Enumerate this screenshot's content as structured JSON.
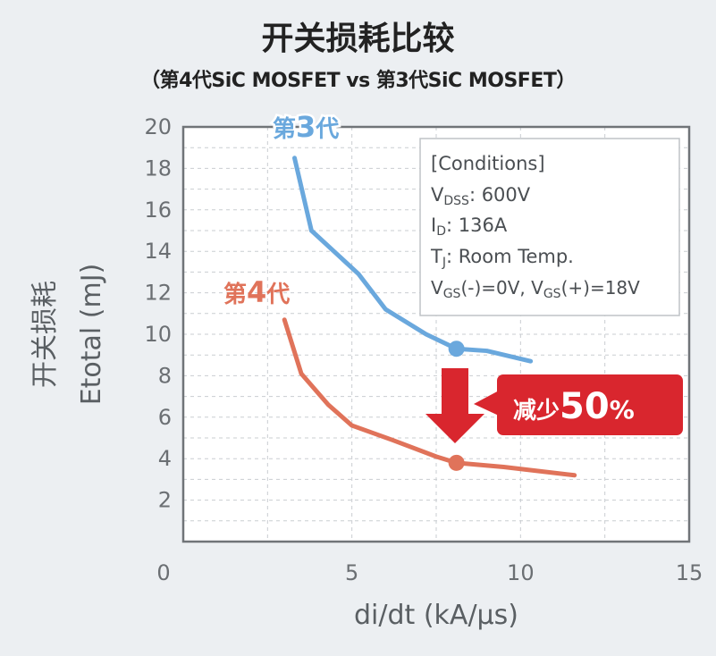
{
  "title": "开关损耗比较",
  "subtitle": "（第4代SiC MOSFET vs 第3代SiC MOSFET）",
  "colors": {
    "gen3": "#6aa8dd",
    "gen4": "#e0735a",
    "arrow": "#d9262e",
    "badge": "#d9262e",
    "axis": "#707478",
    "grid": "#c9cdd1"
  },
  "conditions": {
    "header": "[Conditions]",
    "vdss": {
      "sym": "V",
      "sub": "DSS",
      "text": ": 600V"
    },
    "id": {
      "sym": "I",
      "sub": "D",
      "text": ": 136A"
    },
    "tj": {
      "sym": "T",
      "sub": "J",
      "text": ": Room Temp."
    },
    "vgs": {
      "sym1": "V",
      "sub1": "GS",
      "mid": "(-)=0V, ",
      "sym2": "V",
      "sub2": "GS",
      "end": "(+)=18V"
    }
  },
  "badge": {
    "prefix": "减少",
    "value": "50",
    "unit": "%"
  },
  "chart_data": {
    "type": "line",
    "title": "开关损耗比较",
    "subtitle": "（第4代SiC MOSFET vs 第3代SiC MOSFET）",
    "xlabel": "di/dt (kA/μs)",
    "ylabel": [
      "开关损耗",
      "Etotal (mJ)"
    ],
    "xlim": [
      0,
      15
    ],
    "ylim": [
      0,
      20
    ],
    "xticks": [
      0,
      5,
      10,
      15
    ],
    "yticks": [
      2,
      4,
      6,
      8,
      10,
      12,
      14,
      16,
      18,
      20
    ],
    "grid": true,
    "series": [
      {
        "name": "第3代",
        "label_prefix": "第",
        "label_num": "3",
        "label_suffix": "代",
        "color": "#6aa8dd",
        "x": [
          3.3,
          3.8,
          4.6,
          5.2,
          6.0,
          7.2,
          8.1,
          9.0,
          10.3
        ],
        "y": [
          18.5,
          15.0,
          13.8,
          12.9,
          11.2,
          10.0,
          9.3,
          9.2,
          8.7
        ],
        "marker": {
          "x": 8.1,
          "y": 9.3
        }
      },
      {
        "name": "第4代",
        "label_prefix": "第",
        "label_num": "4",
        "label_suffix": "代",
        "color": "#e0735a",
        "x": [
          3.0,
          3.5,
          4.3,
          5.0,
          6.2,
          7.5,
          8.1,
          9.5,
          11.6
        ],
        "y": [
          10.7,
          8.1,
          6.6,
          5.6,
          4.9,
          4.1,
          3.8,
          3.6,
          3.2
        ],
        "marker": {
          "x": 8.1,
          "y": 3.8
        }
      }
    ],
    "annotation": "减少50%"
  }
}
